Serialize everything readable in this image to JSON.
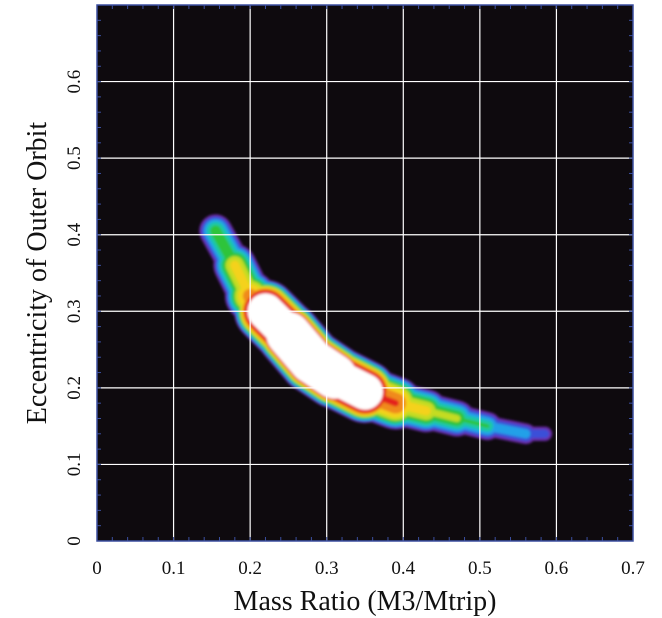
{
  "chart_data": {
    "type": "heatmap",
    "title": "",
    "xlabel": "Mass Ratio (M3/Mtrip)",
    "ylabel": "Eccentricity of Outer Orbit",
    "xlim": [
      0,
      0.7
    ],
    "ylim": [
      0,
      0.7
    ],
    "x_ticks": [
      0,
      0.1,
      0.2,
      0.3,
      0.4,
      0.5,
      0.6,
      0.7
    ],
    "y_ticks": [
      0,
      0.1,
      0.2,
      0.3,
      0.4,
      0.5,
      0.6
    ],
    "x_tick_labels": [
      "0",
      "0.1",
      "0.2",
      "0.3",
      "0.4",
      "0.5",
      "0.6",
      "0.7"
    ],
    "y_tick_labels": [
      "0",
      "0.1",
      "0.2",
      "0.3",
      "0.4",
      "0.5",
      "0.6"
    ],
    "grid": true,
    "background_color": "#0e0a0e",
    "grid_color": "#ffffff",
    "colorscale": [
      "#6a2aa8",
      "#3a4fd8",
      "#22a0e8",
      "#1fc8a8",
      "#2fc43a",
      "#c4dc22",
      "#f4d21c",
      "#f08a1a",
      "#e4201c",
      "#ffffff"
    ],
    "density_ridge": [
      {
        "x": 0.155,
        "y": 0.405,
        "density": 0.5
      },
      {
        "x": 0.18,
        "y": 0.36,
        "density": 0.66
      },
      {
        "x": 0.2,
        "y": 0.32,
        "density": 0.78
      },
      {
        "x": 0.22,
        "y": 0.3,
        "density": 0.98
      },
      {
        "x": 0.25,
        "y": 0.27,
        "density": 1.0
      },
      {
        "x": 0.28,
        "y": 0.235,
        "density": 1.0
      },
      {
        "x": 0.31,
        "y": 0.215,
        "density": 1.0
      },
      {
        "x": 0.35,
        "y": 0.195,
        "density": 0.98
      },
      {
        "x": 0.39,
        "y": 0.18,
        "density": 0.82
      },
      {
        "x": 0.43,
        "y": 0.17,
        "density": 0.66
      },
      {
        "x": 0.47,
        "y": 0.16,
        "density": 0.55
      },
      {
        "x": 0.51,
        "y": 0.15,
        "density": 0.42
      },
      {
        "x": 0.56,
        "y": 0.14,
        "density": 0.3
      },
      {
        "x": 0.585,
        "y": 0.14,
        "density": 0.2
      }
    ]
  }
}
